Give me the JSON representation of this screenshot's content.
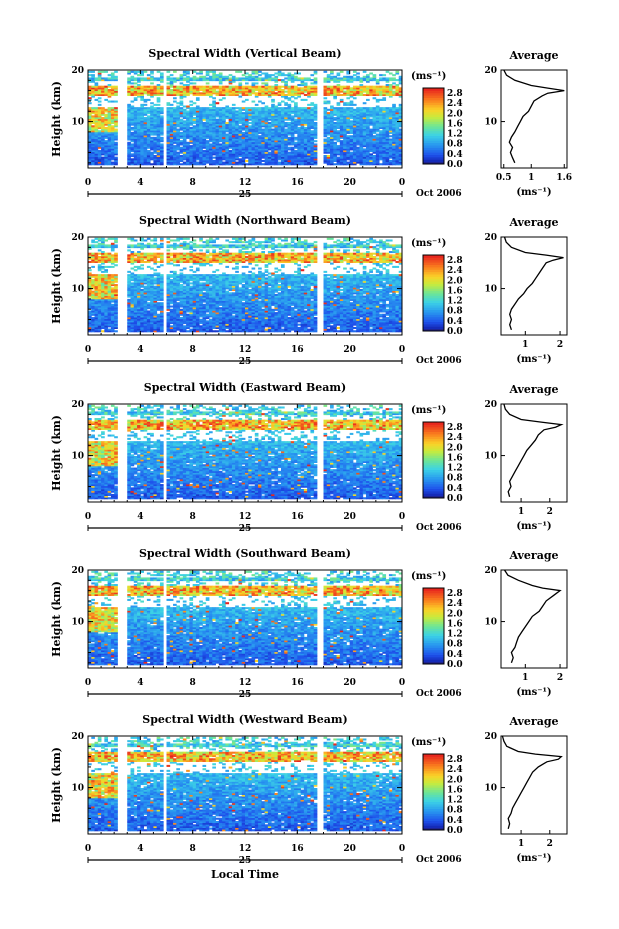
{
  "xlabel": "Local Time",
  "date_label": "Oct 2006",
  "day_label": "25",
  "unit_label": "(ms⁻¹)",
  "average_title": "Average",
  "chart_data": [
    {
      "type": "heatmap",
      "title": "Spectral Width (Vertical Beam)",
      "ylabel": "Height (km)",
      "x_ticks": [
        "0",
        "4",
        "8",
        "12",
        "16",
        "20",
        "0"
      ],
      "y_ticks": [
        "20",
        "10"
      ],
      "xlim": [
        0,
        24
      ],
      "ylim": [
        1,
        20
      ],
      "colorbar_ticks": [
        "2.8",
        "2.4",
        "2.0",
        "1.6",
        "1.2",
        "0.8",
        "0.4",
        "0.0"
      ],
      "colorbar_range": [
        0,
        3.0
      ],
      "tropopause_km": 16,
      "data_gaps_hours": [
        [
          2.3,
          2.9
        ],
        [
          5.8,
          6.0
        ],
        [
          17.6,
          18.0
        ]
      ],
      "average_profile": {
        "x_ticks": [
          "0.5",
          "1",
          "1.6"
        ],
        "xlim": [
          0.45,
          1.65
        ],
        "heights_km": [
          2,
          3,
          4,
          5,
          6,
          7,
          8,
          9,
          10,
          11,
          12,
          13,
          14,
          15,
          15.5,
          16,
          16.5,
          17,
          18,
          19,
          20
        ],
        "values": [
          0.7,
          0.66,
          0.62,
          0.66,
          0.6,
          0.64,
          0.7,
          0.75,
          0.8,
          0.85,
          0.95,
          1.0,
          1.05,
          1.2,
          1.3,
          1.6,
          1.3,
          1.0,
          0.7,
          0.55,
          0.5
        ]
      }
    },
    {
      "type": "heatmap",
      "title": "Spectral Width (Northward Beam)",
      "ylabel": "Height (km)",
      "x_ticks": [
        "0",
        "4",
        "8",
        "12",
        "16",
        "20",
        "0"
      ],
      "y_ticks": [
        "20",
        "10"
      ],
      "xlim": [
        0,
        24
      ],
      "ylim": [
        1,
        20
      ],
      "colorbar_ticks": [
        "2.8",
        "2.4",
        "2.0",
        "1.6",
        "1.2",
        "0.8",
        "0.4",
        "0.0"
      ],
      "colorbar_range": [
        0,
        3.0
      ],
      "tropopause_km": 16,
      "data_gaps_hours": [
        [
          2.3,
          3.0
        ],
        [
          5.8,
          6.0
        ],
        [
          17.6,
          18.0
        ]
      ],
      "average_profile": {
        "x_ticks": [
          "1",
          "2"
        ],
        "xlim": [
          0.3,
          2.2
        ],
        "heights_km": [
          2,
          3,
          4,
          5,
          6,
          7,
          8,
          9,
          10,
          11,
          12,
          13,
          14,
          15,
          15.5,
          16,
          16.5,
          17,
          18,
          19,
          20
        ],
        "values": [
          0.6,
          0.55,
          0.6,
          0.55,
          0.6,
          0.7,
          0.8,
          0.95,
          1.05,
          1.2,
          1.3,
          1.4,
          1.5,
          1.6,
          1.8,
          2.1,
          1.6,
          1.0,
          0.6,
          0.45,
          0.4
        ]
      }
    },
    {
      "type": "heatmap",
      "title": "Spectral Width (Eastward Beam)",
      "ylabel": "Height (km)",
      "x_ticks": [
        "0",
        "4",
        "8",
        "12",
        "16",
        "20",
        "0"
      ],
      "y_ticks": [
        "20",
        "10"
      ],
      "xlim": [
        0,
        24
      ],
      "ylim": [
        1,
        20
      ],
      "colorbar_ticks": [
        "2.8",
        "2.4",
        "2.0",
        "1.6",
        "1.2",
        "0.8",
        "0.4",
        "0.0"
      ],
      "colorbar_range": [
        0,
        3.0
      ],
      "tropopause_km": 16,
      "data_gaps_hours": [
        [
          2.3,
          3.0
        ],
        [
          5.8,
          6.0
        ],
        [
          17.6,
          18.0
        ]
      ],
      "average_profile": {
        "x_ticks": [
          "1",
          "2"
        ],
        "xlim": [
          0.3,
          2.6
        ],
        "heights_km": [
          2,
          3,
          4,
          5,
          6,
          7,
          8,
          9,
          10,
          11,
          12,
          13,
          14,
          15,
          15.5,
          16,
          16.5,
          17,
          18,
          19,
          20
        ],
        "values": [
          0.6,
          0.55,
          0.65,
          0.6,
          0.7,
          0.8,
          0.9,
          1.0,
          1.1,
          1.2,
          1.35,
          1.5,
          1.6,
          1.8,
          2.2,
          2.4,
          1.7,
          1.0,
          0.6,
          0.45,
          0.4
        ]
      }
    },
    {
      "type": "heatmap",
      "title": "Spectral Width (Southward Beam)",
      "ylabel": "Height (km)",
      "x_ticks": [
        "0",
        "4",
        "8",
        "12",
        "16",
        "20",
        "0"
      ],
      "y_ticks": [
        "20",
        "10"
      ],
      "xlim": [
        0,
        24
      ],
      "ylim": [
        1,
        20
      ],
      "colorbar_ticks": [
        "2.8",
        "2.4",
        "2.0",
        "1.6",
        "1.2",
        "0.8",
        "0.4",
        "0.0"
      ],
      "colorbar_range": [
        0,
        3.0
      ],
      "tropopause_km": 16,
      "data_gaps_hours": [
        [
          2.3,
          3.0
        ],
        [
          5.8,
          6.0
        ],
        [
          17.6,
          18.0
        ]
      ],
      "average_profile": {
        "x_ticks": [
          "1",
          "2"
        ],
        "xlim": [
          0.3,
          2.2
        ],
        "heights_km": [
          2,
          3,
          4,
          5,
          6,
          7,
          8,
          9,
          10,
          11,
          12,
          13,
          14,
          15,
          15.5,
          16,
          16.5,
          17,
          18,
          19,
          20
        ],
        "values": [
          0.6,
          0.65,
          0.6,
          0.7,
          0.75,
          0.8,
          0.9,
          1.0,
          1.1,
          1.2,
          1.4,
          1.5,
          1.6,
          1.8,
          1.9,
          2.0,
          1.5,
          1.2,
          0.8,
          0.5,
          0.4
        ]
      }
    },
    {
      "type": "heatmap",
      "title": "Spectral Width (Westward Beam)",
      "ylabel": "Height (km)",
      "x_ticks": [
        "0",
        "4",
        "8",
        "12",
        "16",
        "20",
        "0"
      ],
      "y_ticks": [
        "20",
        "10"
      ],
      "xlim": [
        0,
        24
      ],
      "ylim": [
        1,
        20
      ],
      "colorbar_ticks": [
        "2.8",
        "2.4",
        "2.0",
        "1.6",
        "1.2",
        "0.8",
        "0.4",
        "0.0"
      ],
      "colorbar_range": [
        0,
        3.0
      ],
      "tropopause_km": 16,
      "data_gaps_hours": [
        [
          2.3,
          3.0
        ],
        [
          5.8,
          6.0
        ],
        [
          17.6,
          18.0
        ]
      ],
      "average_profile": {
        "x_ticks": [
          "1",
          "2"
        ],
        "xlim": [
          0.3,
          2.6
        ],
        "heights_km": [
          2,
          3,
          4,
          5,
          6,
          7,
          8,
          9,
          10,
          11,
          12,
          13,
          14,
          15,
          15.5,
          16,
          16.5,
          17,
          18,
          19,
          20
        ],
        "values": [
          0.55,
          0.6,
          0.55,
          0.65,
          0.7,
          0.8,
          0.9,
          1.0,
          1.1,
          1.2,
          1.3,
          1.4,
          1.6,
          1.9,
          2.3,
          2.4,
          1.5,
          0.9,
          0.5,
          0.4,
          0.35
        ]
      }
    }
  ]
}
